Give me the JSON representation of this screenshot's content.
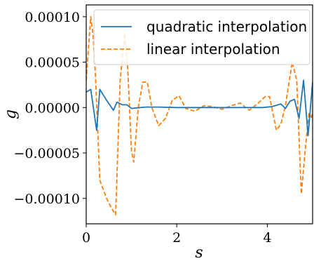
{
  "chart_data": {
    "type": "line",
    "title": "",
    "xlabel": "s",
    "ylabel": "g",
    "xlim": [
      0,
      5
    ],
    "ylim": [
      -0.000128,
      0.000113
    ],
    "grid": false,
    "legend_position": "top-right",
    "x_ticks": [
      0,
      2,
      4
    ],
    "x_tick_labels": [
      "0",
      "2",
      "4"
    ],
    "y_ticks": [
      0.0001,
      5e-05,
      0.0,
      -5e-05,
      -0.0001
    ],
    "y_tick_labels": [
      "0.00010",
      "0.00005",
      "0.00000",
      "−0.00005",
      "−0.00010"
    ],
    "series": [
      {
        "name": "quadratic interpolation",
        "color": "#1f77b4",
        "dash": "solid",
        "x": [
          0,
          0.1,
          0.23,
          0.3,
          0.45,
          0.6,
          0.68,
          0.8,
          0.9,
          1.0,
          1.3,
          1.6,
          2.0,
          2.5,
          3.0,
          3.5,
          3.9,
          4.1,
          4.3,
          4.4,
          4.5,
          4.6,
          4.7,
          4.8,
          4.9,
          5.0
        ],
        "values": [
          1.7e-05,
          2e-05,
          -2.5e-05,
          2e-05,
          8e-06,
          -3e-06,
          6e-06,
          3e-06,
          3e-06,
          -1e-06,
          5e-07,
          5e-07,
          0.0,
          0.0,
          0.0,
          0.0,
          0.0,
          1e-06,
          4e-06,
          -1e-06,
          7e-06,
          9e-06,
          -1.2e-05,
          3e-05,
          -3.1e-05,
          2.8e-05
        ]
      },
      {
        "name": "linear interpolation",
        "color": "#ff7f0e",
        "dash": "dashed",
        "x": [
          0,
          0.1,
          0.15,
          0.2,
          0.3,
          0.45,
          0.55,
          0.65,
          0.75,
          0.85,
          0.92,
          1.0,
          1.05,
          1.15,
          1.25,
          1.35,
          1.45,
          1.6,
          1.75,
          1.9,
          2.05,
          2.2,
          2.4,
          2.6,
          2.8,
          3.0,
          3.2,
          3.4,
          3.6,
          3.8,
          3.95,
          4.05,
          4.2,
          4.3,
          4.4,
          4.55,
          4.65,
          4.75,
          4.85,
          4.92,
          4.97,
          5.0
        ],
        "values": [
          3e-05,
          0.0001,
          8e-05,
          4e-05,
          -8e-05,
          -0.0001,
          -0.00011,
          -0.000118,
          3e-05,
          8.2e-05,
          4e-05,
          -4.8e-05,
          -6e-05,
          0.0,
          2.8e-05,
          2.8e-05,
          0.0,
          -2e-05,
          -1.2e-05,
          8e-06,
          1.3e-05,
          -1e-06,
          -4e-06,
          2e-06,
          1e-06,
          -2e-06,
          2e-06,
          5e-06,
          -3e-06,
          5e-06,
          1.2e-05,
          1.2e-05,
          -2.5e-05,
          -1.8e-05,
          2e-06,
          5e-05,
          3e-05,
          -9.5e-05,
          -4e-05,
          -5e-06,
          -1.2e-05,
          -5e-06
        ]
      }
    ]
  }
}
